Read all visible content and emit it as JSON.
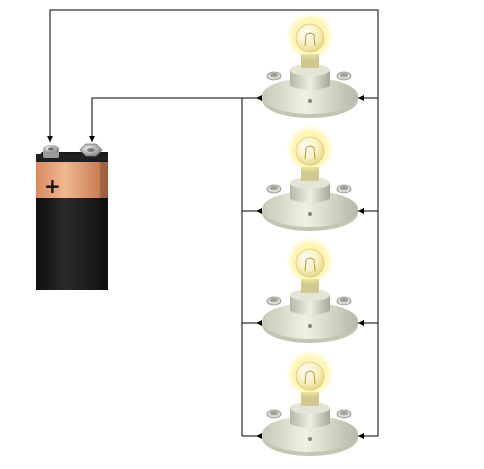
{
  "battery": {
    "plus_symbol": "+",
    "colors": {
      "top": "#e8a070",
      "body": "#1c1c1c",
      "terminal": "#c8c8c8"
    }
  },
  "bulbs": [
    {
      "index": 1,
      "lit": true
    },
    {
      "index": 2,
      "lit": true
    },
    {
      "index": 3,
      "lit": true
    },
    {
      "index": 4,
      "lit": true
    }
  ],
  "colors": {
    "wire": "#000000",
    "glow": "#fff7b0",
    "socket": "#e6e6d6"
  }
}
